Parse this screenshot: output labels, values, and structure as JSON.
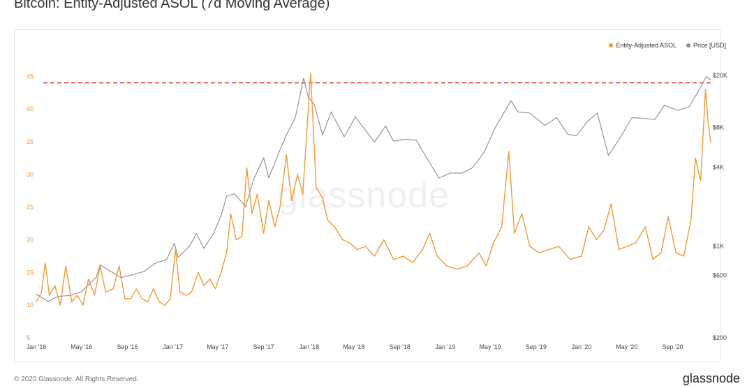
{
  "page": {
    "title": "Bitcoin: Entity-Adjusted ASOL (7d Moving Average)",
    "watermark": "glassnode",
    "footer_left": "© 2020 Glassnode. All Rights Reserved.",
    "footer_right": "glassnode"
  },
  "colors": {
    "asol": "#f09a36",
    "price": "#8c8c8c",
    "ath_line": "#e03c31",
    "left_axis_text": "#e8963c",
    "right_axis_text": "#444444"
  },
  "chart_data": {
    "type": "line",
    "x_range": [
      "2016-01-01",
      "2020-12-12"
    ],
    "x_ticks": [
      "Jan '16",
      "May '16",
      "Sep '16",
      "Jan '17",
      "May '17",
      "Sep '17",
      "Jan '18",
      "May '18",
      "Sep '18",
      "Jan '19",
      "May '19",
      "Sep '19",
      "Jan '20",
      "May '20",
      "Sep '20"
    ],
    "y_left": {
      "range": [
        5,
        46
      ],
      "ticks": [
        "5",
        "10",
        "15",
        "20",
        "25",
        "30",
        "35",
        "40",
        "45"
      ]
    },
    "y_right": {
      "scale": "log",
      "range": [
        200,
        22000
      ],
      "ticks": [
        "$200",
        "$600",
        "$1K",
        "$4K",
        "$8K",
        "$20K"
      ]
    },
    "legend_placement": "top-right",
    "grid": false,
    "series": [
      {
        "name": "Entity-Adjusted ASOL",
        "axis": "left",
        "points": [
          [
            "2016-01-01",
            10.5
          ],
          [
            "2016-01-15",
            12.0
          ],
          [
            "2016-01-25",
            16.5
          ],
          [
            "2016-02-05",
            11.5
          ],
          [
            "2016-02-20",
            13.0
          ],
          [
            "2016-03-05",
            10.0
          ],
          [
            "2016-03-20",
            16.0
          ],
          [
            "2016-04-05",
            10.5
          ],
          [
            "2016-04-20",
            11.5
          ],
          [
            "2016-05-05",
            10.0
          ],
          [
            "2016-05-20",
            14.0
          ],
          [
            "2016-06-05",
            11.5
          ],
          [
            "2016-06-20",
            16.0
          ],
          [
            "2016-07-05",
            12.0
          ],
          [
            "2016-07-25",
            12.5
          ],
          [
            "2016-08-10",
            16.0
          ],
          [
            "2016-08-25",
            11.0
          ],
          [
            "2016-09-10",
            11.0
          ],
          [
            "2016-09-25",
            12.5
          ],
          [
            "2016-10-10",
            11.0
          ],
          [
            "2016-10-25",
            10.5
          ],
          [
            "2016-11-10",
            12.5
          ],
          [
            "2016-11-25",
            10.5
          ],
          [
            "2016-12-10",
            10.0
          ],
          [
            "2016-12-25",
            11.0
          ],
          [
            "2017-01-08",
            18.5
          ],
          [
            "2017-01-20",
            12.0
          ],
          [
            "2017-02-05",
            11.5
          ],
          [
            "2017-02-20",
            12.0
          ],
          [
            "2017-03-10",
            15.0
          ],
          [
            "2017-03-25",
            13.0
          ],
          [
            "2017-04-10",
            14.0
          ],
          [
            "2017-04-25",
            12.5
          ],
          [
            "2017-05-10",
            15.0
          ],
          [
            "2017-05-25",
            18.0
          ],
          [
            "2017-06-05",
            24.0
          ],
          [
            "2017-06-20",
            20.0
          ],
          [
            "2017-07-05",
            20.5
          ],
          [
            "2017-07-18",
            31.0
          ],
          [
            "2017-08-01",
            24.0
          ],
          [
            "2017-08-15",
            27.0
          ],
          [
            "2017-09-01",
            21.0
          ],
          [
            "2017-09-15",
            26.0
          ],
          [
            "2017-10-01",
            22.0
          ],
          [
            "2017-10-15",
            25.0
          ],
          [
            "2017-11-01",
            33.0
          ],
          [
            "2017-11-15",
            26.0
          ],
          [
            "2017-12-01",
            30.0
          ],
          [
            "2017-12-15",
            27.0
          ],
          [
            "2018-01-05",
            45.5
          ],
          [
            "2018-01-20",
            28.0
          ],
          [
            "2018-02-05",
            26.5
          ],
          [
            "2018-02-20",
            23.0
          ],
          [
            "2018-03-10",
            22.0
          ],
          [
            "2018-04-01",
            20.0
          ],
          [
            "2018-04-20",
            19.5
          ],
          [
            "2018-05-10",
            18.5
          ],
          [
            "2018-06-01",
            19.0
          ],
          [
            "2018-06-25",
            17.5
          ],
          [
            "2018-07-20",
            20.0
          ],
          [
            "2018-08-15",
            17.0
          ],
          [
            "2018-09-10",
            17.5
          ],
          [
            "2018-10-05",
            16.5
          ],
          [
            "2018-11-01",
            18.5
          ],
          [
            "2018-11-20",
            21.0
          ],
          [
            "2018-12-10",
            17.5
          ],
          [
            "2019-01-05",
            16.0
          ],
          [
            "2019-02-01",
            15.5
          ],
          [
            "2019-03-01",
            16.0
          ],
          [
            "2019-04-01",
            18.0
          ],
          [
            "2019-04-20",
            16.0
          ],
          [
            "2019-05-10",
            19.5
          ],
          [
            "2019-06-01",
            22.0
          ],
          [
            "2019-06-20",
            33.5
          ],
          [
            "2019-07-05",
            21.0
          ],
          [
            "2019-07-25",
            24.0
          ],
          [
            "2019-08-15",
            19.0
          ],
          [
            "2019-09-10",
            18.0
          ],
          [
            "2019-10-05",
            18.5
          ],
          [
            "2019-11-01",
            19.0
          ],
          [
            "2019-12-01",
            17.0
          ],
          [
            "2020-01-01",
            17.5
          ],
          [
            "2020-01-20",
            22.0
          ],
          [
            "2020-02-10",
            20.0
          ],
          [
            "2020-03-01",
            21.5
          ],
          [
            "2020-03-20",
            25.5
          ],
          [
            "2020-04-10",
            18.5
          ],
          [
            "2020-05-01",
            19.0
          ],
          [
            "2020-05-25",
            19.5
          ],
          [
            "2020-06-20",
            22.0
          ],
          [
            "2020-07-10",
            17.0
          ],
          [
            "2020-08-01",
            18.0
          ],
          [
            "2020-08-20",
            23.5
          ],
          [
            "2020-09-10",
            18.0
          ],
          [
            "2020-10-01",
            17.5
          ],
          [
            "2020-10-20",
            23.0
          ],
          [
            "2020-11-01",
            32.5
          ],
          [
            "2020-11-15",
            29.0
          ],
          [
            "2020-11-28",
            43.0
          ],
          [
            "2020-12-05",
            38.0
          ],
          [
            "2020-12-12",
            35.0
          ]
        ]
      },
      {
        "name": "Price [USD]",
        "axis": "right",
        "points": [
          [
            "2016-01-01",
            430
          ],
          [
            "2016-02-01",
            380
          ],
          [
            "2016-03-01",
            415
          ],
          [
            "2016-04-01",
            420
          ],
          [
            "2016-05-01",
            450
          ],
          [
            "2016-06-10",
            580
          ],
          [
            "2016-06-20",
            720
          ],
          [
            "2016-07-15",
            650
          ],
          [
            "2016-08-15",
            575
          ],
          [
            "2016-09-15",
            605
          ],
          [
            "2016-10-15",
            640
          ],
          [
            "2016-11-15",
            740
          ],
          [
            "2016-12-15",
            790
          ],
          [
            "2017-01-05",
            1050
          ],
          [
            "2017-01-15",
            820
          ],
          [
            "2017-02-15",
            1000
          ],
          [
            "2017-03-05",
            1250
          ],
          [
            "2017-03-25",
            960
          ],
          [
            "2017-04-20",
            1250
          ],
          [
            "2017-05-10",
            1700
          ],
          [
            "2017-05-25",
            2400
          ],
          [
            "2017-06-15",
            2500
          ],
          [
            "2017-07-15",
            2000
          ],
          [
            "2017-08-05",
            3200
          ],
          [
            "2017-09-01",
            4700
          ],
          [
            "2017-09-15",
            3300
          ],
          [
            "2017-10-10",
            5000
          ],
          [
            "2017-11-01",
            7000
          ],
          [
            "2017-11-25",
            9500
          ],
          [
            "2017-12-17",
            19000
          ],
          [
            "2017-12-30",
            13500
          ],
          [
            "2018-01-15",
            12000
          ],
          [
            "2018-02-06",
            7000
          ],
          [
            "2018-03-01",
            10500
          ],
          [
            "2018-04-05",
            6800
          ],
          [
            "2018-05-05",
            9600
          ],
          [
            "2018-06-25",
            6200
          ],
          [
            "2018-07-25",
            8200
          ],
          [
            "2018-08-15",
            6300
          ],
          [
            "2018-09-15",
            6500
          ],
          [
            "2018-10-15",
            6400
          ],
          [
            "2018-11-20",
            4300
          ],
          [
            "2018-12-15",
            3300
          ],
          [
            "2019-01-15",
            3600
          ],
          [
            "2019-02-15",
            3600
          ],
          [
            "2019-03-15",
            3950
          ],
          [
            "2019-04-15",
            5200
          ],
          [
            "2019-05-15",
            8000
          ],
          [
            "2019-06-26",
            12800
          ],
          [
            "2019-07-15",
            10500
          ],
          [
            "2019-08-15",
            10300
          ],
          [
            "2019-09-25",
            8300
          ],
          [
            "2019-10-26",
            9500
          ],
          [
            "2019-11-25",
            7100
          ],
          [
            "2019-12-18",
            6900
          ],
          [
            "2020-01-15",
            8800
          ],
          [
            "2020-02-12",
            10300
          ],
          [
            "2020-03-13",
            4900
          ],
          [
            "2020-04-15",
            6800
          ],
          [
            "2020-05-15",
            9500
          ],
          [
            "2020-06-15",
            9400
          ],
          [
            "2020-07-15",
            9200
          ],
          [
            "2020-08-10",
            11800
          ],
          [
            "2020-09-15",
            10800
          ],
          [
            "2020-10-15",
            11500
          ],
          [
            "2020-11-10",
            15300
          ],
          [
            "2020-11-30",
            19500
          ],
          [
            "2020-12-12",
            18500
          ]
        ]
      }
    ],
    "annotations": [
      {
        "type": "horizontal-dashed-line",
        "axis": "left",
        "value": 44,
        "color": "#e03c31"
      }
    ]
  }
}
